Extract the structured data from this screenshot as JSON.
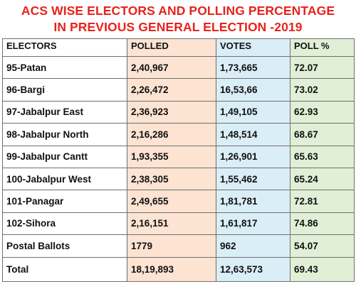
{
  "title": {
    "line1": "ACS WISE ELECTORS AND POLLING PERCENTAGE",
    "line2": "IN PREVIOUS GENERAL ELECTION -2019"
  },
  "colors": {
    "title": "#e8231c",
    "polled_column": "#fce3d2",
    "votes_column": "#daeef7",
    "poll_column": "#e1efd6"
  },
  "table": {
    "headers": [
      "ELECTORS",
      "POLLED",
      "VOTES",
      "POLL %"
    ],
    "rows": [
      [
        "95-Patan",
        "2,40,967",
        "1,73,665",
        "72.07"
      ],
      [
        "96-Bargi",
        "2,26,472",
        "16,53,66",
        "73.02"
      ],
      [
        "97-Jabalpur East",
        "2,36,923",
        "1,49,105",
        "62.93"
      ],
      [
        "98-Jabalpur North",
        "2,16,286",
        "1,48,514",
        "68.67"
      ],
      [
        "99-Jabalpur Cantt",
        "1,93,355",
        "1,26,901",
        "65.63"
      ],
      [
        "100-Jabalpur West",
        "2,38,305",
        "1,55,462",
        "65.24"
      ],
      [
        "101-Panagar",
        "2,49,655",
        "1,81,781",
        "72.81"
      ],
      [
        "102-Sihora",
        "2,16,151",
        "1,61,817",
        "74.86"
      ],
      [
        "Postal Ballots",
        "1779",
        "962",
        "54.07"
      ],
      [
        "Total",
        "18,19,893",
        "12,63,573",
        "69.43"
      ]
    ]
  }
}
